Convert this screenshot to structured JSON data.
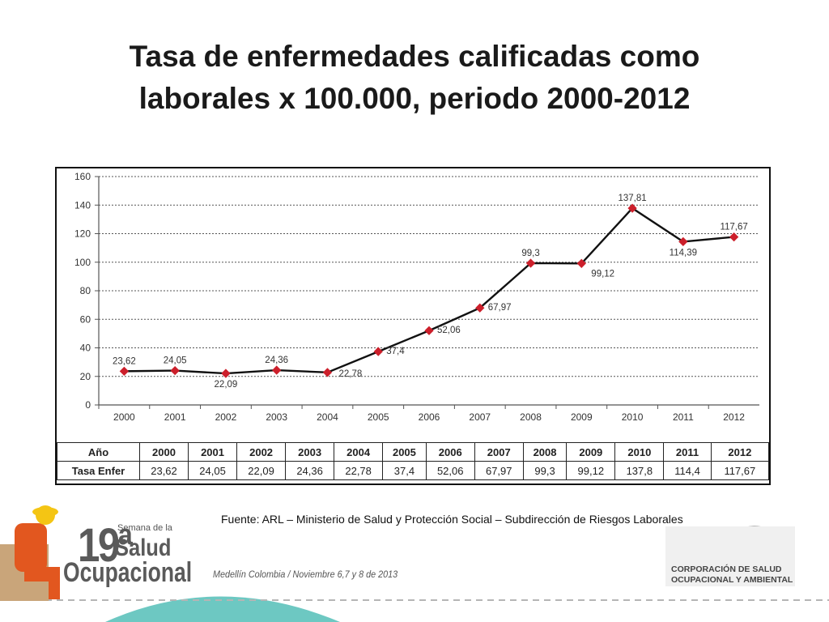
{
  "slide": {
    "title_line1": "Tasa de enfermedades calificadas como",
    "title_line2": "laborales x 100.000, periodo 2000-2012",
    "source": "Fuente: ARL – Ministerio de Salud y Protección Social – Subdirección de Riesgos Laborales"
  },
  "chart_data": {
    "type": "line",
    "x": [
      "2000",
      "2001",
      "2002",
      "2003",
      "2004",
      "2005",
      "2006",
      "2007",
      "2008",
      "2009",
      "2010",
      "2011",
      "2012"
    ],
    "values": [
      23.62,
      24.05,
      22.09,
      24.36,
      22.78,
      37.4,
      52.06,
      67.97,
      99.3,
      99.12,
      137.81,
      114.39,
      117.67
    ],
    "data_labels": [
      "23,62",
      "24,05",
      "22,09",
      "24,36",
      "22,78",
      "37,4",
      "52,06",
      "67,97",
      "99,3",
      "99,12",
      "137,81",
      "114,39",
      "117,67"
    ],
    "ylim": [
      0,
      160
    ],
    "yticks": [
      "0",
      "20",
      "40",
      "60",
      "80",
      "100",
      "120",
      "140",
      "160"
    ],
    "grid": true,
    "line_color": "#111111",
    "marker_color": "#cc1f2b"
  },
  "table": {
    "row1_header": "Año",
    "row2_header": "Tasa Enfer",
    "years": [
      "2000",
      "2001",
      "2002",
      "2003",
      "2004",
      "2005",
      "2006",
      "2007",
      "2008",
      "2009",
      "2010",
      "2011",
      "2012"
    ],
    "values": [
      "23,62",
      "24,05",
      "22,09",
      "24,36",
      "22,78",
      "37,4",
      "52,06",
      "67,97",
      "99,3",
      "99,12",
      "137,8",
      "114,4",
      "117,67"
    ]
  },
  "footer": {
    "event_number": "19ª",
    "event_week": "Semana de la",
    "event_salud": "Salud",
    "event_ocupacional": "Ocupacional",
    "event_place": "Medellín Colombia / Noviembre 6,7 y 8 de 2013",
    "corp_line1": "CORPORACIÓN DE SALUD",
    "corp_line2": "OCUPACIONAL Y AMBIENTAL",
    "accent_teal": "#6dc8c2",
    "worker_orange": "#e2571f",
    "helmet_yellow": "#f4c514"
  }
}
